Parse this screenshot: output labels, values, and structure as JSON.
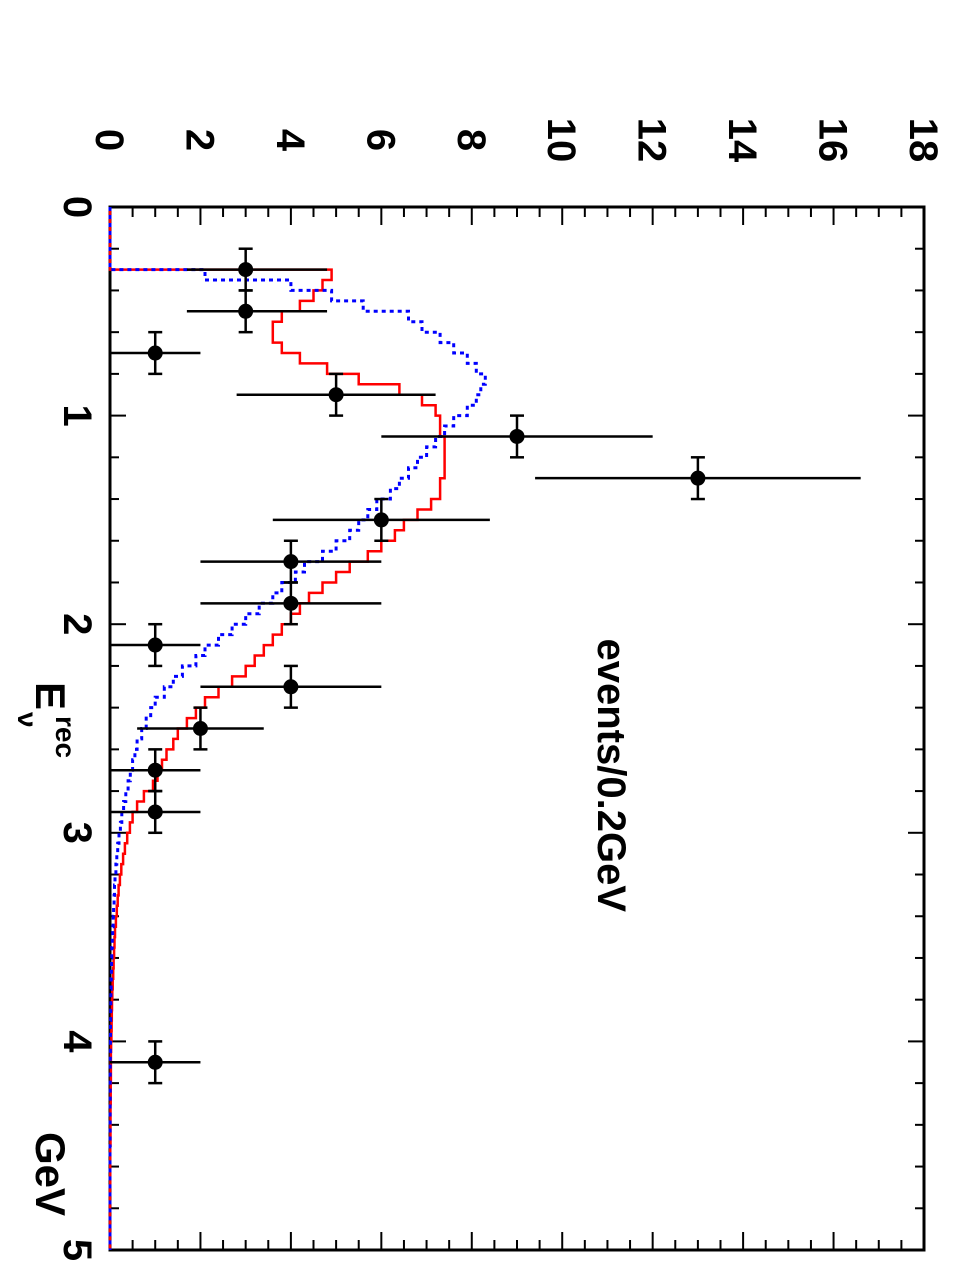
{
  "chart_data": {
    "type": "line",
    "xlabel": "E",
    "xlabel_sup": "rec",
    "xlabel_sub": "ν",
    "xunit": "GeV",
    "ylabel": "events/0.2GeV",
    "xlim": [
      0,
      5
    ],
    "ylim": [
      0,
      18
    ],
    "xticks": [
      "0",
      "1",
      "2",
      "3",
      "4",
      "5"
    ],
    "yticks": [
      "0",
      "2",
      "4",
      "6",
      "8",
      "10",
      "12",
      "14",
      "16",
      "18"
    ],
    "orientation": "rotated 90° clockwise",
    "colors": {
      "data": "#000000",
      "red_series": "#ff0000",
      "blue_series": "#0000ff"
    },
    "data_points": [
      {
        "x": 0.3,
        "y": 3,
        "yerr": [
          1.3,
          1.8
        ]
      },
      {
        "x": 0.5,
        "y": 3,
        "yerr": [
          1.3,
          1.8
        ]
      },
      {
        "x": 0.7,
        "y": 1,
        "yerr": [
          1.0,
          1.0
        ]
      },
      {
        "x": 0.9,
        "y": 5,
        "yerr": [
          2.2,
          2.2
        ]
      },
      {
        "x": 1.1,
        "y": 9,
        "yerr": [
          3.0,
          3.0
        ]
      },
      {
        "x": 1.3,
        "y": 13,
        "yerr": [
          3.6,
          3.6
        ]
      },
      {
        "x": 1.5,
        "y": 6,
        "yerr": [
          2.4,
          2.4
        ]
      },
      {
        "x": 1.7,
        "y": 4,
        "yerr": [
          2.0,
          2.0
        ]
      },
      {
        "x": 1.9,
        "y": 4,
        "yerr": [
          2.0,
          2.0
        ]
      },
      {
        "x": 2.1,
        "y": 1,
        "yerr": [
          1.0,
          1.0
        ]
      },
      {
        "x": 2.3,
        "y": 4,
        "yerr": [
          2.0,
          2.0
        ]
      },
      {
        "x": 2.5,
        "y": 2,
        "yerr": [
          1.4,
          1.4
        ]
      },
      {
        "x": 2.7,
        "y": 1,
        "yerr": [
          1.0,
          1.0
        ]
      },
      {
        "x": 2.9,
        "y": 1,
        "yerr": [
          1.0,
          1.0
        ]
      },
      {
        "x": 4.1,
        "y": 1,
        "yerr": [
          1.0,
          1.0
        ]
      }
    ],
    "series": [
      {
        "style": "solid",
        "color": "#ff0000",
        "x": [
          0,
          0.25,
          0.3,
          0.35,
          0.4,
          0.45,
          0.5,
          0.55,
          0.6,
          0.65,
          0.7,
          0.75,
          0.8,
          0.85,
          0.9,
          0.95,
          1.0,
          1.05,
          1.1,
          1.15,
          1.2,
          1.25,
          1.3,
          1.35,
          1.4,
          1.45,
          1.5,
          1.55,
          1.6,
          1.65,
          1.7,
          1.75,
          1.8,
          1.85,
          1.9,
          1.95,
          2.0,
          2.05,
          2.1,
          2.15,
          2.2,
          2.25,
          2.3,
          2.35,
          2.4,
          2.45,
          2.5,
          2.55,
          2.6,
          2.65,
          2.7,
          2.75,
          2.8,
          2.85,
          2.9,
          2.95,
          3.0,
          3.05,
          3.1,
          3.15,
          3.2,
          3.25,
          3.3,
          3.35,
          3.4,
          3.45,
          3.5,
          3.55,
          3.6,
          3.65,
          3.7,
          3.75,
          3.8,
          3.85,
          3.9,
          3.95,
          4.0,
          4.05,
          4.1,
          4.2,
          4.3,
          4.4,
          4.5,
          4.6,
          4.7,
          4.8,
          4.9,
          5.0
        ],
        "y": [
          0,
          0,
          4.9,
          4.7,
          4.5,
          4.2,
          3.8,
          3.6,
          3.6,
          3.8,
          4.2,
          4.8,
          5.5,
          6.4,
          6.9,
          7.2,
          7.3,
          7.3,
          7.4,
          7.4,
          7.4,
          7.4,
          7.3,
          7.3,
          7.1,
          6.8,
          6.5,
          6.3,
          6.0,
          5.7,
          5.3,
          5.0,
          4.7,
          4.4,
          4.2,
          4.0,
          3.8,
          3.6,
          3.4,
          3.2,
          3.0,
          2.7,
          2.4,
          2.1,
          1.9,
          1.7,
          1.5,
          1.4,
          1.25,
          1.15,
          1.05,
          0.95,
          0.75,
          0.6,
          0.5,
          0.44,
          0.38,
          0.33,
          0.29,
          0.25,
          0.22,
          0.19,
          0.17,
          0.15,
          0.13,
          0.11,
          0.1,
          0.09,
          0.08,
          0.07,
          0.06,
          0.05,
          0.045,
          0.04,
          0.035,
          0.03,
          0.025,
          0.02,
          0.02,
          0.015,
          0.01,
          0.01,
          0.005,
          0.005,
          0.0,
          0.0,
          0.0,
          0.0
        ]
      },
      {
        "style": "dotted",
        "color": "#0000ff",
        "x": [
          0,
          0.25,
          0.3,
          0.35,
          0.4,
          0.45,
          0.5,
          0.55,
          0.6,
          0.65,
          0.7,
          0.75,
          0.8,
          0.85,
          0.9,
          0.95,
          1.0,
          1.05,
          1.1,
          1.15,
          1.2,
          1.25,
          1.3,
          1.35,
          1.4,
          1.45,
          1.5,
          1.55,
          1.6,
          1.65,
          1.7,
          1.75,
          1.8,
          1.85,
          1.9,
          1.95,
          2.0,
          2.05,
          2.1,
          2.15,
          2.2,
          2.25,
          2.3,
          2.35,
          2.4,
          2.45,
          2.5,
          2.55,
          2.6,
          2.65,
          2.7,
          2.75,
          2.8,
          2.85,
          2.9,
          2.95,
          3.0,
          3.05,
          3.1,
          3.15,
          3.2,
          3.25,
          3.3,
          3.35,
          3.4,
          3.45,
          3.5,
          3.55,
          3.6,
          3.65,
          3.7,
          3.75,
          3.8,
          3.85,
          3.9,
          3.95,
          4.0,
          4.05,
          4.1,
          4.2,
          4.3,
          4.4,
          4.5,
          4.6,
          4.7,
          4.8,
          4.9,
          5.0
        ],
        "y": [
          0,
          0,
          2.1,
          4.0,
          4.9,
          5.6,
          6.6,
          6.9,
          7.3,
          7.6,
          7.9,
          8.1,
          8.3,
          8.2,
          8.1,
          7.9,
          7.6,
          7.4,
          7.2,
          7.0,
          6.8,
          6.6,
          6.4,
          6.2,
          5.9,
          5.7,
          5.5,
          5.3,
          5.0,
          4.7,
          4.3,
          4.1,
          3.8,
          3.6,
          3.3,
          3.0,
          2.7,
          2.4,
          2.1,
          1.9,
          1.6,
          1.4,
          1.2,
          1.0,
          0.9,
          0.8,
          0.7,
          0.6,
          0.55,
          0.5,
          0.45,
          0.4,
          0.35,
          0.3,
          0.26,
          0.23,
          0.2,
          0.17,
          0.15,
          0.13,
          0.11,
          0.1,
          0.09,
          0.08,
          0.07,
          0.06,
          0.05,
          0.04,
          0.035,
          0.03,
          0.025,
          0.02,
          0.018,
          0.015,
          0.012,
          0.01,
          0.008,
          0.006,
          0.005,
          0.004,
          0.003,
          0.002,
          0.001,
          0.0,
          0.0,
          0.0,
          0.0,
          0.0
        ]
      }
    ]
  }
}
